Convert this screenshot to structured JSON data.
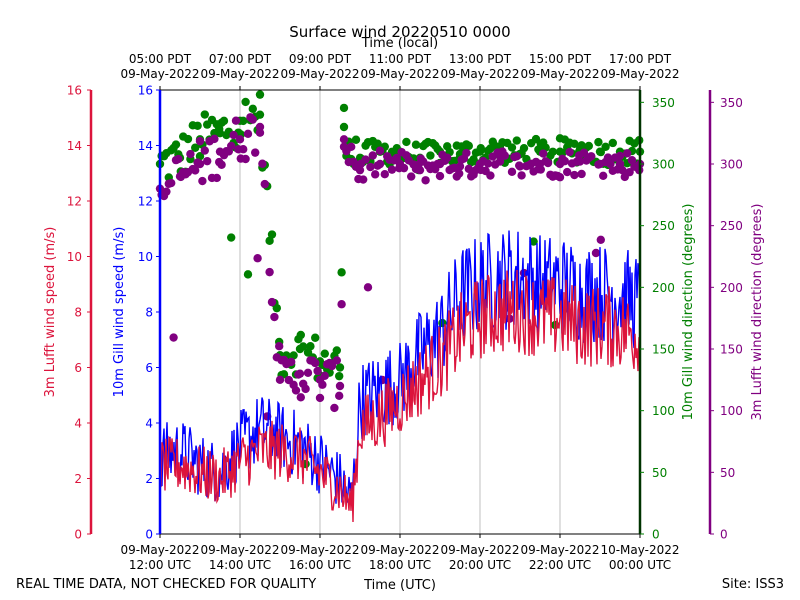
{
  "chart_data": {
    "type": "line+scatter",
    "title": "Surface wind 20220510 0000",
    "top_xlabel": "Time (local)",
    "xlabel": "Time (UTC)",
    "footer_left": "REAL TIME DATA, NOT CHECKED FOR QUALITY",
    "footer_right": "Site: ISS3",
    "x_hours_range": [
      12,
      24
    ],
    "bottom_ticks": [
      {
        "hour": 12,
        "line1": "09-May-2022",
        "line2": "12:00 UTC"
      },
      {
        "hour": 14,
        "line1": "09-May-2022",
        "line2": "14:00 UTC"
      },
      {
        "hour": 16,
        "line1": "09-May-2022",
        "line2": "16:00 UTC"
      },
      {
        "hour": 18,
        "line1": "09-May-2022",
        "line2": "18:00 UTC"
      },
      {
        "hour": 20,
        "line1": "09-May-2022",
        "line2": "20:00 UTC"
      },
      {
        "hour": 22,
        "line1": "09-May-2022",
        "line2": "22:00 UTC"
      },
      {
        "hour": 24,
        "line1": "10-May-2022",
        "line2": "00:00 UTC"
      }
    ],
    "top_ticks": [
      {
        "hour": 12,
        "line1": "05:00 PDT",
        "line2": "09-May-2022"
      },
      {
        "hour": 14,
        "line1": "07:00 PDT",
        "line2": "09-May-2022"
      },
      {
        "hour": 16,
        "line1": "09:00 PDT",
        "line2": "09-May-2022"
      },
      {
        "hour": 18,
        "line1": "11:00 PDT",
        "line2": "09-May-2022"
      },
      {
        "hour": 20,
        "line1": "13:00 PDT",
        "line2": "09-May-2022"
      },
      {
        "hour": 22,
        "line1": "15:00 PDT",
        "line2": "09-May-2022"
      },
      {
        "hour": 24,
        "line1": "17:00 PDT",
        "line2": "09-May-2022"
      }
    ],
    "speed_axes": {
      "ylim": [
        0,
        16
      ],
      "ticks": [
        0,
        2,
        4,
        6,
        8,
        10,
        12,
        14,
        16
      ],
      "left_outer_label": "3m Lufft wind speed (m/s)",
      "left_inner_label": "10m Gill wind speed (m/s)"
    },
    "direction_axes": {
      "ylim": [
        0,
        360
      ],
      "ticks": [
        0,
        50,
        100,
        150,
        200,
        250,
        300,
        350
      ],
      "right_inner_label": "10m Gill wind direction (degrees)",
      "right_outer_label": "3m Lufft wind direction (degrees)"
    },
    "colors": {
      "gill_speed": "#0000ff",
      "lufft_speed": "#dc143c",
      "gill_dir": "#008000",
      "lufft_dir": "#800080",
      "grid": "#b0b0b0"
    },
    "series": [
      {
        "name": "10m Gill wind speed",
        "kind": "line",
        "axis": "speed",
        "x": [
          12.0,
          12.5,
          13.0,
          13.5,
          14.0,
          14.5,
          15.0,
          15.5,
          16.0,
          16.5,
          16.8,
          17.0,
          17.5,
          18.0,
          18.5,
          19.0,
          19.5,
          20.0,
          20.5,
          21.0,
          21.5,
          22.0,
          22.5,
          23.0,
          23.5,
          24.0
        ],
        "values": [
          2.8,
          3.0,
          2.5,
          2.2,
          3.2,
          3.8,
          3.5,
          3.2,
          2.6,
          1.9,
          1.2,
          4.8,
          5.2,
          5.5,
          6.5,
          7.2,
          8.6,
          9.0,
          9.2,
          9.3,
          9.0,
          9.0,
          8.7,
          8.7,
          8.6,
          8.3
        ]
      },
      {
        "name": "3m Lufft wind speed",
        "kind": "line",
        "axis": "speed",
        "x": [
          12.0,
          12.5,
          13.0,
          13.5,
          14.0,
          14.5,
          15.0,
          15.5,
          16.0,
          16.5,
          16.8,
          17.0,
          17.5,
          18.0,
          18.5,
          19.0,
          19.5,
          20.0,
          20.5,
          21.0,
          21.5,
          22.0,
          22.5,
          23.0,
          23.5,
          24.0
        ],
        "values": [
          2.4,
          2.5,
          2.2,
          2.0,
          2.6,
          3.0,
          3.0,
          2.8,
          2.2,
          1.6,
          1.0,
          3.8,
          4.2,
          4.8,
          5.5,
          6.2,
          7.2,
          7.8,
          8.0,
          8.1,
          7.8,
          7.8,
          7.5,
          7.5,
          7.4,
          7.1
        ]
      },
      {
        "name": "10m Gill wind direction",
        "kind": "scatter",
        "axis": "direction",
        "x": [
          12.0,
          12.5,
          13.0,
          13.5,
          14.0,
          14.5,
          15.0,
          15.5,
          16.0,
          16.5,
          16.6,
          17.0,
          17.5,
          18.0,
          18.5,
          19.0,
          19.5,
          20.0,
          20.5,
          21.0,
          21.5,
          22.0,
          22.5,
          23.0,
          23.5,
          24.0
        ],
        "values": [
          300,
          305,
          320,
          325,
          335,
          340,
          145,
          150,
          140,
          135,
          330,
          305,
          310,
          310,
          305,
          310,
          308,
          310,
          312,
          308,
          310,
          310,
          312,
          310,
          310,
          310
        ]
      },
      {
        "name": "3m Lufft wind direction",
        "kind": "scatter",
        "axis": "direction",
        "x": [
          12.0,
          12.5,
          13.0,
          13.5,
          14.0,
          14.5,
          15.0,
          15.5,
          16.0,
          16.5,
          16.6,
          17.0,
          17.5,
          18.0,
          18.5,
          19.0,
          19.5,
          20.0,
          20.5,
          21.0,
          21.5,
          22.0,
          22.5,
          23.0,
          23.5,
          24.0
        ],
        "values": [
          280,
          290,
          300,
          310,
          320,
          330,
          125,
          130,
          125,
          120,
          320,
          295,
          300,
          300,
          295,
          300,
          298,
          300,
          302,
          298,
          300,
          300,
          302,
          300,
          300,
          300
        ]
      }
    ]
  }
}
